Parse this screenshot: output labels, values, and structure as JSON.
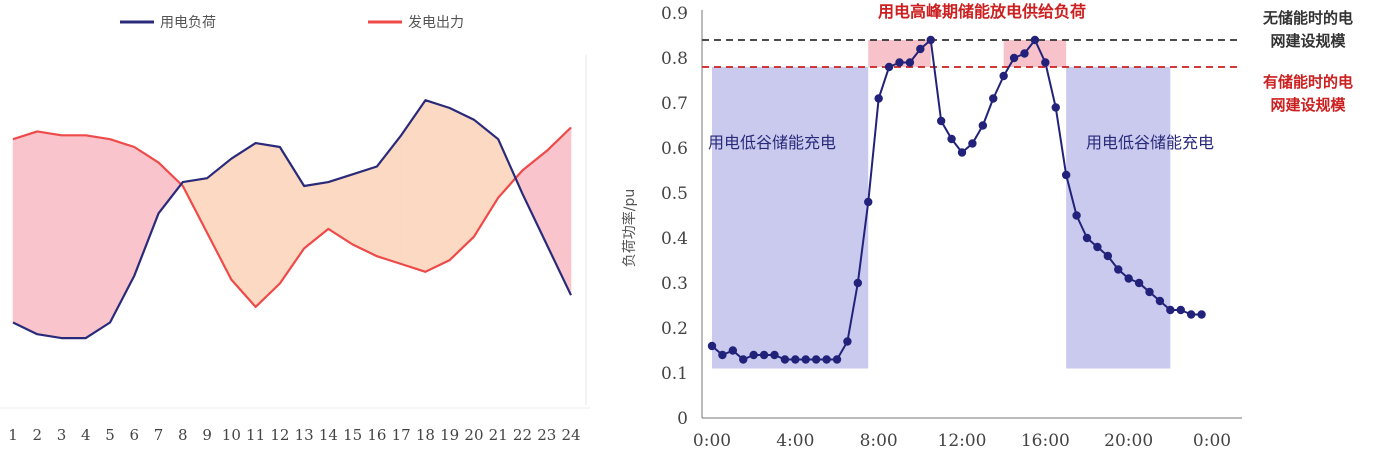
{
  "chart_data": [
    {
      "type": "line",
      "title": "",
      "xlabel": "",
      "ylabel": "",
      "categories": [
        "1",
        "2",
        "3",
        "4",
        "5",
        "6",
        "7",
        "8",
        "9",
        "10",
        "11",
        "12",
        "13",
        "14",
        "15",
        "16",
        "17",
        "18",
        "19",
        "20",
        "21",
        "22",
        "23",
        "24"
      ],
      "series": [
        {
          "name": "用电负荷",
          "color": "#2a2a7a",
          "values": [
            0.25,
            0.22,
            0.21,
            0.21,
            0.25,
            0.37,
            0.53,
            0.61,
            0.62,
            0.67,
            0.71,
            0.7,
            0.6,
            0.61,
            0.63,
            0.65,
            0.73,
            0.82,
            0.8,
            0.77,
            0.72,
            0.58,
            0.45,
            0.32
          ]
        },
        {
          "name": "发电出力",
          "color": "#ee4a4a",
          "values": [
            0.72,
            0.74,
            0.73,
            0.73,
            0.72,
            0.7,
            0.66,
            0.6,
            0.48,
            0.36,
            0.29,
            0.35,
            0.44,
            0.49,
            0.45,
            0.42,
            0.4,
            0.38,
            0.41,
            0.47,
            0.57,
            0.64,
            0.69,
            0.75
          ]
        }
      ],
      "ylim": [
        0,
        1
      ],
      "fill_colors": {
        "generation_above_load": "#f9c4cb",
        "load_above_generation": "#fcd9c2"
      },
      "legend_position": "top"
    },
    {
      "type": "line",
      "title": "",
      "xlabel": "",
      "ylabel": "负荷功率/pu",
      "x_ticks": [
        "0:00",
        "4:00",
        "8:00",
        "12:00",
        "16:00",
        "20:00",
        "0:00"
      ],
      "y_ticks": [
        "0",
        "0.1",
        "0.2",
        "0.3",
        "0.4",
        "0.5",
        "0.6",
        "0.7",
        "0.8",
        "0.9"
      ],
      "ylim": [
        0,
        0.9
      ],
      "xlim": [
        0,
        24
      ],
      "series": [
        {
          "name": "",
          "color": "#22227a",
          "x": [
            0,
            0.5,
            1,
            1.5,
            2,
            2.5,
            3,
            3.5,
            4,
            4.5,
            5,
            5.5,
            6,
            6.5,
            7,
            7.5,
            8,
            8.5,
            9,
            9.5,
            10,
            10.5,
            11,
            11.5,
            12,
            12.5,
            13,
            13.5,
            14,
            14.5,
            15,
            15.5,
            16,
            16.5,
            17,
            17.5,
            18,
            18.5,
            19,
            19.5,
            20,
            20.5,
            21,
            21.5,
            22,
            22.5,
            23,
            23.5
          ],
          "values": [
            0.16,
            0.14,
            0.15,
            0.13,
            0.14,
            0.14,
            0.14,
            0.13,
            0.13,
            0.13,
            0.13,
            0.13,
            0.13,
            0.17,
            0.3,
            0.48,
            0.71,
            0.78,
            0.79,
            0.79,
            0.82,
            0.84,
            0.66,
            0.62,
            0.59,
            0.61,
            0.65,
            0.71,
            0.76,
            0.8,
            0.81,
            0.84,
            0.79,
            0.69,
            0.54,
            0.45,
            0.4,
            0.38,
            0.36,
            0.33,
            0.31,
            0.3,
            0.28,
            0.26,
            0.24,
            0.24,
            0.23,
            0.23
          ]
        }
      ],
      "reference_lines": [
        {
          "value": 0.84,
          "color": "#333333",
          "label": "无储能时的电网建设规模"
        },
        {
          "value": 0.78,
          "color": "#cc1f1f",
          "label": "有储能时的电网建设规模"
        }
      ],
      "shaded_regions": [
        {
          "x_range": [
            0,
            7.5
          ],
          "y_range": [
            0.11,
            0.78
          ],
          "color": "#c9caee",
          "label": "用电低谷储能充电"
        },
        {
          "x_range": [
            17,
            22
          ],
          "y_range": [
            0.11,
            0.78
          ],
          "color": "#c9caee",
          "label": "用电低谷储能充电"
        },
        {
          "x_range": [
            7.5,
            10.5
          ],
          "y_range": [
            0.78,
            0.84
          ],
          "color": "#f7c2ca",
          "label": ""
        },
        {
          "x_range": [
            14,
            17
          ],
          "y_range": [
            0.78,
            0.84
          ],
          "color": "#f7c2ca",
          "label": ""
        }
      ],
      "annotations": [
        {
          "text": "用电高峰期储能放电供给负荷",
          "color": "#cc1f1f"
        }
      ],
      "grid": false
    }
  ]
}
